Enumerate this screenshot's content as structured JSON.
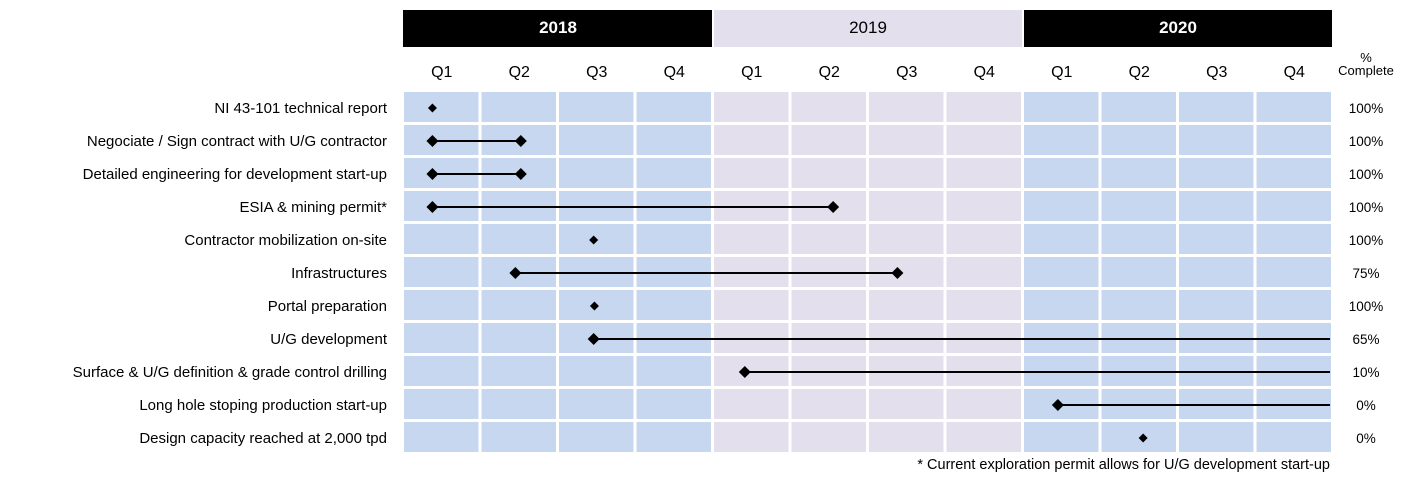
{
  "chart_data": {
    "type": "gantt",
    "years": [
      {
        "label": "2018",
        "header_style": "dark",
        "band_color": "#c6d7ef"
      },
      {
        "label": "2019",
        "header_style": "light",
        "band_color": "#e3dfec"
      },
      {
        "label": "2020",
        "header_style": "dark",
        "band_color": "#c6d7ef"
      }
    ],
    "quarters": [
      "Q1",
      "Q2",
      "Q3",
      "Q4"
    ],
    "percent_header": [
      "%",
      "Complete"
    ],
    "tasks": [
      {
        "label": "NI 43-101 technical report",
        "start": 0.38,
        "end": null,
        "extends": false,
        "small": true,
        "percent": "100%"
      },
      {
        "label": "Negociate / Sign contract with U/G contractor",
        "start": 0.38,
        "end": 1.52,
        "extends": false,
        "small": false,
        "percent": "100%"
      },
      {
        "label": "Detailed engineering for development start-up",
        "start": 0.38,
        "end": 1.52,
        "extends": false,
        "small": false,
        "percent": "100%"
      },
      {
        "label": "ESIA & mining permit*",
        "start": 0.38,
        "end": 5.55,
        "extends": false,
        "small": false,
        "percent": "100%"
      },
      {
        "label": "Contractor mobilization on-site",
        "start": 2.46,
        "end": null,
        "extends": false,
        "small": true,
        "percent": "100%"
      },
      {
        "label": "Infrastructures",
        "start": 1.45,
        "end": 6.38,
        "extends": false,
        "small": false,
        "percent": "75%"
      },
      {
        "label": "Portal preparation",
        "start": 2.47,
        "end": null,
        "extends": false,
        "small": true,
        "percent": "100%"
      },
      {
        "label": "U/G development",
        "start": 2.46,
        "end": null,
        "extends": true,
        "small": false,
        "percent": "65%"
      },
      {
        "label": "Surface & U/G definition & grade control drilling",
        "start": 4.41,
        "end": null,
        "extends": true,
        "small": false,
        "percent": "10%"
      },
      {
        "label": "Long hole stoping production start-up",
        "start": 8.45,
        "end": null,
        "extends": true,
        "small": false,
        "percent": "0%"
      },
      {
        "label": "Design capacity reached at 2,000 tpd",
        "start": 9.55,
        "end": null,
        "extends": false,
        "small": true,
        "percent": "0%"
      }
    ],
    "footnote": "* Current exploration permit allows for U/G development start-up"
  }
}
